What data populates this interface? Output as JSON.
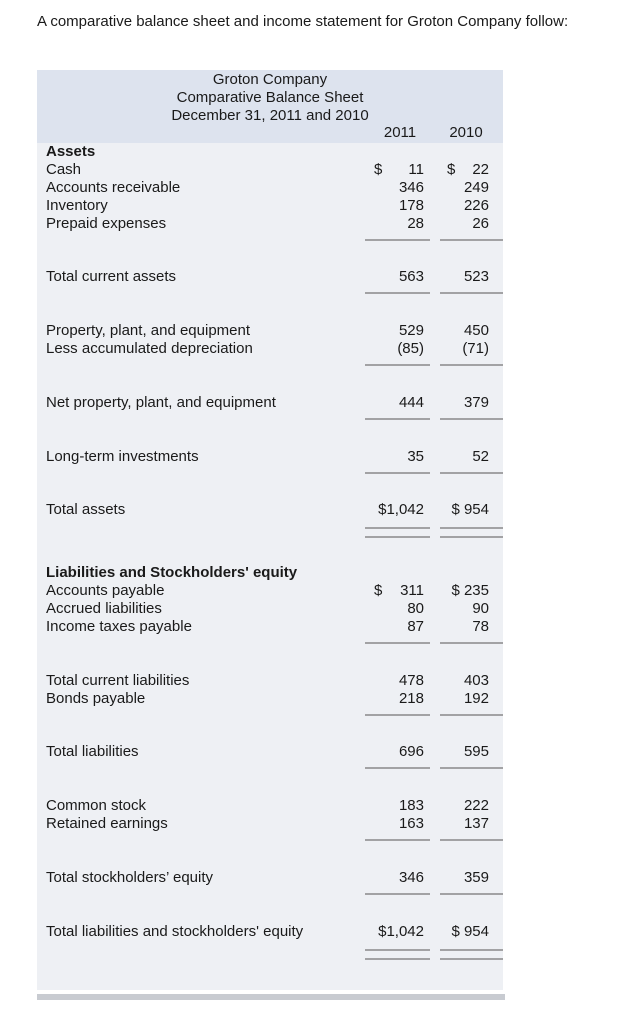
{
  "intro": "A comparative balance sheet and income statement for Groton Company follow:",
  "table": {
    "header": {
      "company": "Groton Company",
      "title": "Comparative Balance Sheet",
      "date": "December 31, 2011 and 2010",
      "years": [
        "2011",
        "2010"
      ]
    },
    "rows": [
      {
        "label": "Assets",
        "heading": true
      },
      {
        "label": "Cash",
        "cur2011": "$",
        "v2011": "11",
        "cur2010": "$",
        "v2010": "22"
      },
      {
        "label": "Accounts receivable",
        "v2011": "346",
        "v2010": "249"
      },
      {
        "label": "Inventory",
        "v2011": "178",
        "v2010": "226"
      },
      {
        "label": "Prepaid expenses",
        "v2011": "28",
        "v2010": "26",
        "rule": "single"
      },
      {
        "label": "Total current assets",
        "v2011": "563",
        "v2010": "523",
        "rule": "single"
      },
      {
        "label": "Property, plant, and equipment",
        "v2011": "529",
        "v2010": "450"
      },
      {
        "label": "Less accumulated depreciation",
        "v2011": "(85)",
        "v2010": "(71)",
        "rule": "single"
      },
      {
        "label": "Net property, plant, and equipment",
        "v2011": "444",
        "v2010": "379",
        "rule": "single"
      },
      {
        "label": "Long-term investments",
        "v2011": "35",
        "v2010": "52",
        "rule": "single"
      },
      {
        "label": "Total assets",
        "v2011": "$1,042",
        "v2010": "$ 954",
        "rule": "double"
      },
      {
        "label": "Liabilities and Stockholders' equity",
        "heading": true
      },
      {
        "label": "Accounts payable",
        "cur2011": "$",
        "v2011": "311",
        "v2010": "$ 235"
      },
      {
        "label": "Accrued liabilities",
        "v2011": "80",
        "v2010": "90"
      },
      {
        "label": "Income taxes payable",
        "v2011": "87",
        "v2010": "78",
        "rule": "single"
      },
      {
        "label": "Total current liabilities",
        "v2011": "478",
        "v2010": "403"
      },
      {
        "label": "Bonds payable",
        "v2011": "218",
        "v2010": "192",
        "rule": "single"
      },
      {
        "label": "Total liabilities",
        "v2011": "696",
        "v2010": "595",
        "rule": "single"
      },
      {
        "label": "Common stock",
        "v2011": "183",
        "v2010": "222"
      },
      {
        "label": "Retained earnings",
        "v2011": "163",
        "v2010": "137",
        "rule": "single"
      },
      {
        "label": "Total stockholders’ equity",
        "v2011": "346",
        "v2010": "359",
        "rule": "single"
      },
      {
        "label": "Total liabilities and stockholders' equity",
        "v2011": "$1,042",
        "v2010": "$ 954",
        "rule": "double"
      }
    ]
  }
}
